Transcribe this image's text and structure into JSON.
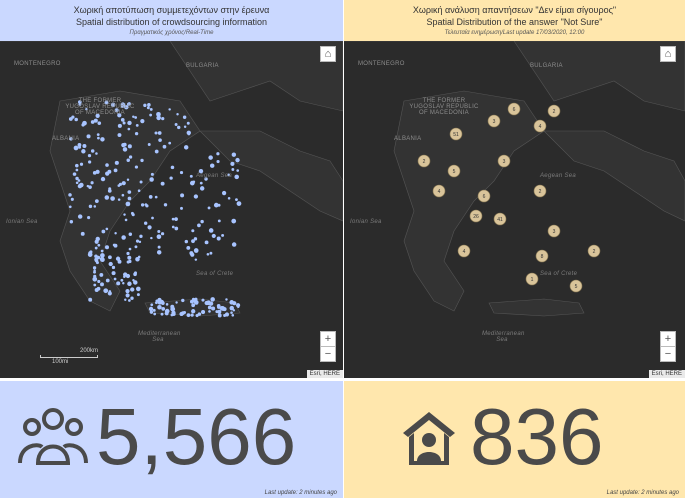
{
  "left_panel": {
    "title_gr": "Χωρική αποτύπωση συμμετεχόντων στην έρευνα",
    "title_en": "Spatial distribution of crowdsourcing information",
    "subtitle": "Πραγματικός χρόνος/Real-Time",
    "header_color": "#cad8ff",
    "point_color": "#a8c4ff",
    "map_labels": {
      "montenegro": "MONTENEGRO",
      "bulgaria": "BULGARIA",
      "yugoslav": "THE FORMER YUGOSLAV REPUBLIC OF MACEDONIA",
      "albania": "ALBANIA",
      "aegean": "Aegean Sea",
      "ionian": "Ionian Sea",
      "crete_sea": "Sea of Crete",
      "med": "Mediterranean Sea"
    },
    "scale_km": "200km",
    "scale_mi": "100mi",
    "attribution": "Esri, HERE"
  },
  "right_panel": {
    "title_gr": "Χωρική ανάλυση απαντήσεων \"Δεν είμαι σίγουρος\"",
    "title_en": "Spatial Distribution of the answer \"Not Sure\"",
    "subtitle": "Τελευταία ενημέρωση/Last update 17/03/2020, 12:00",
    "header_color": "#ffe7ad",
    "cluster_color": "#d9c49a",
    "map_labels": {
      "montenegro": "MONTENEGRO",
      "bulgaria": "BULGARIA",
      "yugoslav": "THE FORMER YUGOSLAV REPUBLIC OF MACEDONIA",
      "albania": "ALBANIA",
      "aegean": "Aegean Sea",
      "ionian": "Ionian Sea",
      "crete_sea": "Sea of Crete",
      "med": "Mediterranean Sea"
    },
    "clusters": [
      "51",
      "6",
      "2",
      "4",
      "3",
      "41",
      "26",
      "4",
      "5",
      "2",
      "3",
      "8",
      "1",
      "2",
      "5",
      "4",
      "6",
      "3",
      "2"
    ],
    "attribution": "Esri, HERE"
  },
  "controls": {
    "home": "⌂",
    "zoom_in": "+",
    "zoom_out": "−"
  },
  "left_kpi": {
    "value": "5,566",
    "icon": "users-group-icon",
    "background": "#cad8ff",
    "last_update": "Last update: 2 minutes ago"
  },
  "right_kpi": {
    "value": "836",
    "icon": "house-person-icon",
    "background": "#ffe7ad",
    "last_update": "Last update: 2 minutes ago"
  }
}
